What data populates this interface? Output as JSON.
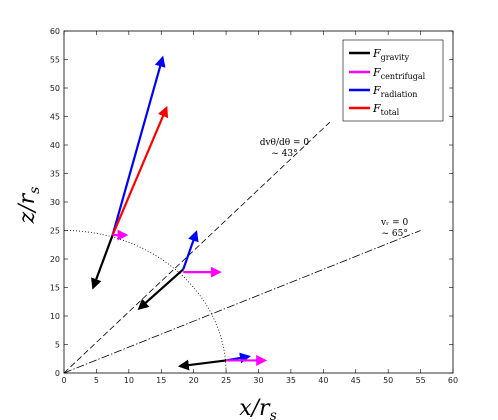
{
  "chart_data": {
    "type": "line",
    "xlabel": "x/r",
    "xlabel_sub": "s",
    "ylabel": "z/r",
    "ylabel_sub": "s",
    "xlim": [
      0,
      60
    ],
    "ylim": [
      0,
      60
    ],
    "xticks": [
      0,
      5,
      10,
      15,
      20,
      25,
      30,
      35,
      40,
      45,
      50,
      55,
      60
    ],
    "yticks": [
      0,
      5,
      10,
      15,
      20,
      25,
      30,
      35,
      40,
      45,
      50,
      55,
      60
    ],
    "grid": false,
    "legend_position": "top-right",
    "legend": [
      {
        "key": "gravity",
        "main": "F",
        "sub": "gravity",
        "color": "#000000"
      },
      {
        "key": "centrifugal",
        "main": "F",
        "sub": "centrifugal",
        "color": "#ff00ff"
      },
      {
        "key": "radiation",
        "main": "F",
        "sub": "radiation",
        "color": "#0000ff"
      },
      {
        "key": "total",
        "main": "F",
        "sub": "total",
        "color": "#ff0000"
      }
    ],
    "lines": [
      {
        "name": "dv_theta/dtheta = 0",
        "style": "dashed",
        "x": [
          0,
          41
        ],
        "y": [
          0,
          44
        ]
      },
      {
        "name": "v_r = 0",
        "style": "dashdot",
        "x": [
          0,
          55
        ],
        "y": [
          0,
          25
        ]
      }
    ],
    "circle": {
      "style": "dotted",
      "radius": 25
    },
    "annotations": [
      {
        "key": "dvtheta",
        "line1": "dvθ/dθ = 0",
        "line2": "~ 43°",
        "x": 34,
        "y": 40
      },
      {
        "key": "vr",
        "line1": "vᵣ = 0",
        "line2": "~ 65°",
        "x": 51,
        "y": 26
      }
    ],
    "vectors": [
      {
        "point": "upper",
        "force": "radiation",
        "x0": 7.5,
        "y0": 24.2,
        "x1": 15.2,
        "y1": 55.3
      },
      {
        "point": "upper",
        "force": "total",
        "x0": 7.5,
        "y0": 24.2,
        "x1": 15.8,
        "y1": 46.5
      },
      {
        "point": "upper",
        "force": "gravity",
        "x0": 7.5,
        "y0": 24.2,
        "x1": 4.5,
        "y1": 15
      },
      {
        "point": "upper",
        "force": "centrifugal",
        "x0": 7.5,
        "y0": 24.2,
        "x1": 9.6,
        "y1": 24.2
      },
      {
        "point": "middle",
        "force": "radiation",
        "x0": 18.4,
        "y0": 18.2,
        "x1": 20.4,
        "y1": 24.7
      },
      {
        "point": "middle",
        "force": "gravity",
        "x0": 18.4,
        "y0": 18.2,
        "x1": 11.6,
        "y1": 11.3
      },
      {
        "point": "middle",
        "force": "centrifugal",
        "x0": 18.4,
        "y0": 17.7,
        "x1": 24,
        "y1": 17.7
      },
      {
        "point": "lower",
        "force": "radiation",
        "x0": 25,
        "y0": 2.2,
        "x1": 28.5,
        "y1": 2.9
      },
      {
        "point": "lower",
        "force": "centrifugal",
        "x0": 25,
        "y0": 2.2,
        "x1": 31,
        "y1": 2.2
      },
      {
        "point": "lower",
        "force": "gravity",
        "x0": 25,
        "y0": 2.2,
        "x1": 17.9,
        "y1": 1.2
      }
    ]
  }
}
